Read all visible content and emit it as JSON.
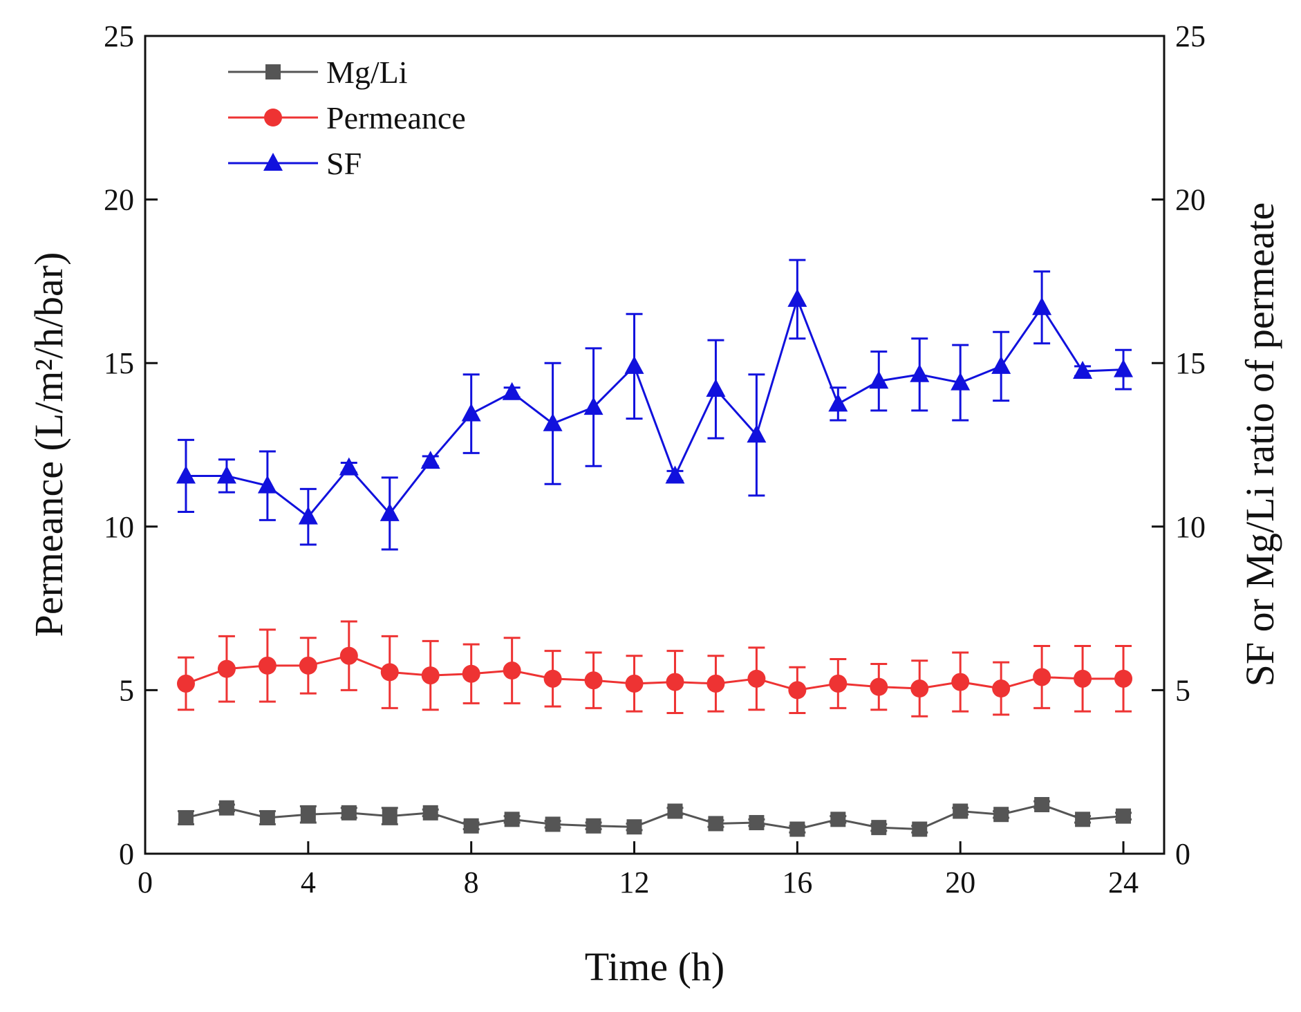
{
  "chart_data": {
    "type": "line",
    "xlabel": "Time (h)",
    "ylabel_left": "Permeance (L/m²/h/bar)",
    "ylabel_right": "SF or Mg/Li ratio of permeate",
    "xlim": [
      0,
      25
    ],
    "ylim_left": [
      0,
      25
    ],
    "ylim_right": [
      0,
      25
    ],
    "x_ticks": [
      0,
      4,
      8,
      12,
      16,
      20,
      24
    ],
    "y_ticks": [
      0,
      5,
      10,
      15,
      20,
      25
    ],
    "legend_position": "top-left",
    "grid": false,
    "x": [
      1,
      2,
      3,
      4,
      5,
      6,
      7,
      8,
      9,
      10,
      11,
      12,
      13,
      14,
      15,
      16,
      17,
      18,
      19,
      20,
      21,
      22,
      23,
      24
    ],
    "series": [
      {
        "name": "Mg/Li",
        "marker": "square",
        "color": "#555555",
        "axis": "right",
        "values": [
          1.1,
          1.4,
          1.1,
          1.2,
          1.25,
          1.15,
          1.25,
          0.85,
          1.05,
          0.9,
          0.85,
          0.82,
          1.3,
          0.92,
          0.95,
          0.75,
          1.05,
          0.8,
          0.75,
          1.3,
          1.2,
          1.5,
          1.05,
          1.15
        ],
        "errors": [
          0.2,
          0.1,
          0.2,
          0.25,
          0.15,
          0.25,
          0.1,
          0.1,
          0.1,
          0.1,
          0.1,
          0.1,
          0.1,
          0.1,
          0.1,
          0.1,
          0.1,
          0.1,
          0.1,
          0.1,
          0.1,
          0.1,
          0.1,
          0.1
        ]
      },
      {
        "name": "Permeance",
        "marker": "circle",
        "color": "#ee3333",
        "axis": "left",
        "values": [
          5.2,
          5.65,
          5.75,
          5.75,
          6.05,
          5.55,
          5.45,
          5.5,
          5.6,
          5.35,
          5.3,
          5.2,
          5.25,
          5.2,
          5.35,
          5.0,
          5.2,
          5.1,
          5.05,
          5.25,
          5.05,
          5.4,
          5.35,
          5.35
        ],
        "errors": [
          0.8,
          1.0,
          1.1,
          0.85,
          1.05,
          1.1,
          1.05,
          0.9,
          1.0,
          0.85,
          0.85,
          0.85,
          0.95,
          0.85,
          0.95,
          0.7,
          0.75,
          0.7,
          0.85,
          0.9,
          0.8,
          0.95,
          1.0,
          1.0
        ]
      },
      {
        "name": "SF",
        "marker": "triangle",
        "color": "#1111dd",
        "axis": "right",
        "values": [
          11.55,
          11.55,
          11.25,
          10.3,
          11.8,
          10.4,
          12.0,
          13.45,
          14.1,
          13.15,
          13.65,
          14.9,
          11.55,
          14.2,
          12.8,
          16.95,
          13.75,
          14.45,
          14.65,
          14.4,
          14.9,
          16.7,
          14.75,
          14.8
        ],
        "errors": [
          1.1,
          0.5,
          1.05,
          0.85,
          0.15,
          1.1,
          0.15,
          1.2,
          0.15,
          1.85,
          1.8,
          1.6,
          0.15,
          1.5,
          1.85,
          1.2,
          0.5,
          0.9,
          1.1,
          1.15,
          1.05,
          1.1,
          0.15,
          0.6
        ]
      }
    ]
  }
}
